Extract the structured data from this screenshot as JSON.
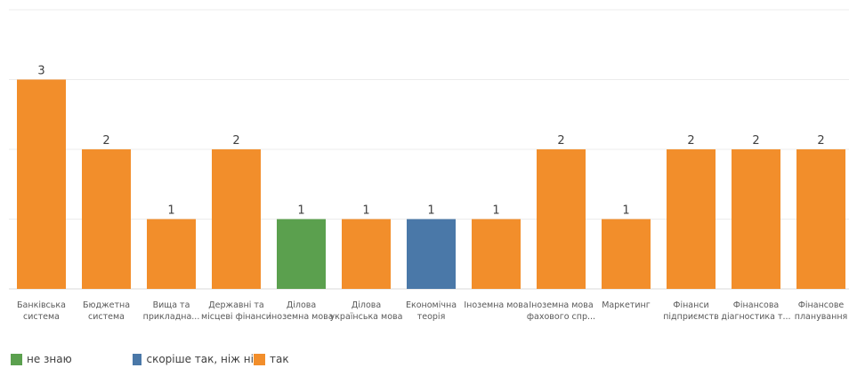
{
  "chart_data": {
    "type": "bar",
    "stacked": true,
    "categories": [
      [
        "Банківська",
        "система"
      ],
      [
        "Бюджетна",
        "система"
      ],
      [
        "Вища та",
        "прикладна..."
      ],
      [
        "Державні та",
        "місцеві фінанси"
      ],
      [
        "Ділова",
        "іноземна мова"
      ],
      [
        "Ділова",
        "українська мова"
      ],
      [
        "Економічна",
        "теорія"
      ],
      [
        "Іноземна мова"
      ],
      [
        "Іноземна мова",
        "фахового спр..."
      ],
      [
        "Маркетинг"
      ],
      [
        "Фінанси",
        "підприємств"
      ],
      [
        "Фінансова",
        "діагностика т..."
      ],
      [
        "Фінансове",
        "планування"
      ]
    ],
    "series": [
      {
        "name": "не знаю",
        "color": "#5ba04e",
        "values": [
          0,
          0,
          0,
          0,
          1,
          0,
          0,
          0,
          0,
          0,
          0,
          0,
          0
        ]
      },
      {
        "name": "скоріше так, ніж ні",
        "color": "#4a78a8",
        "values": [
          0,
          0,
          0,
          0,
          0,
          0,
          1,
          0,
          0,
          0,
          0,
          0,
          0
        ]
      },
      {
        "name": "так",
        "color": "#f28e2b",
        "values": [
          3,
          2,
          1,
          2,
          0,
          1,
          0,
          1,
          2,
          1,
          2,
          2,
          2
        ]
      }
    ],
    "data_labels": [
      "3",
      "2",
      "1",
      "2",
      "1",
      "1",
      "1",
      "1",
      "2",
      "1",
      "2",
      "2",
      "2"
    ],
    "ylim": [
      0,
      4
    ],
    "grid": true,
    "legend_position": "bottom-left"
  }
}
